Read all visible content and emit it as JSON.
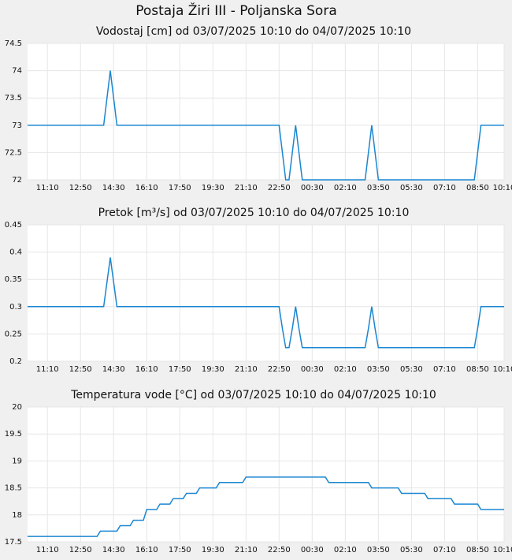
{
  "title": "Postaja Žiri III - Poljanska Sora",
  "chart_data": [
    {
      "type": "line",
      "title": "Vodostaj [cm] od 03/07/2025 10:10 do 04/07/2025 10:10",
      "color": "#1a86d0",
      "grid": true,
      "categories": [
        null,
        null,
        null,
        null,
        null,
        null,
        "11:10",
        null,
        null,
        null,
        null,
        null,
        null,
        null,
        null,
        null,
        "12:50",
        null,
        null,
        null,
        null,
        null,
        null,
        null,
        null,
        null,
        "14:30",
        null,
        null,
        null,
        null,
        null,
        null,
        null,
        null,
        null,
        "16:10",
        null,
        null,
        null,
        null,
        null,
        null,
        null,
        null,
        null,
        "17:50",
        null,
        null,
        null,
        null,
        null,
        null,
        null,
        null,
        null,
        "19:30",
        null,
        null,
        null,
        null,
        null,
        null,
        null,
        null,
        null,
        "21:10",
        null,
        null,
        null,
        null,
        null,
        null,
        null,
        null,
        null,
        "22:50",
        null,
        null,
        null,
        null,
        null,
        null,
        null,
        null,
        null,
        "00:30",
        null,
        null,
        null,
        null,
        null,
        null,
        null,
        null,
        null,
        "02:10",
        null,
        null,
        null,
        null,
        null,
        null,
        null,
        null,
        null,
        "03:50",
        null,
        null,
        null,
        null,
        null,
        null,
        null,
        null,
        null,
        "05:30",
        null,
        null,
        null,
        null,
        null,
        null,
        null,
        null,
        null,
        "07:10",
        null,
        null,
        null,
        null,
        null,
        null,
        null,
        null,
        null,
        "08:50",
        null,
        null,
        null,
        null,
        null,
        null,
        null,
        "10:10"
      ],
      "values": [
        73,
        73,
        73,
        73,
        73,
        73,
        73,
        73,
        73,
        73,
        73,
        73,
        73,
        73,
        73,
        73,
        73,
        73,
        73,
        73,
        73,
        73,
        73,
        73,
        73.5,
        74,
        73.5,
        73,
        73,
        73,
        73,
        73,
        73,
        73,
        73,
        73,
        73,
        73,
        73,
        73,
        73,
        73,
        73,
        73,
        73,
        73,
        73,
        73,
        73,
        73,
        73,
        73,
        73,
        73,
        73,
        73,
        73,
        73,
        73,
        73,
        73,
        73,
        73,
        73,
        73,
        73,
        73,
        73,
        73,
        73,
        73,
        73,
        73,
        73,
        73,
        73,
        73,
        72.5,
        72,
        72,
        72.5,
        73,
        72.5,
        72,
        72,
        72,
        72,
        72,
        72,
        72,
        72,
        72,
        72,
        72,
        72,
        72,
        72,
        72,
        72,
        72,
        72,
        72,
        72,
        72.5,
        73,
        72.5,
        72,
        72,
        72,
        72,
        72,
        72,
        72,
        72,
        72,
        72,
        72,
        72,
        72,
        72,
        72,
        72,
        72,
        72,
        72,
        72,
        72,
        72,
        72,
        72,
        72,
        72,
        72,
        72,
        72,
        72,
        72.5,
        73,
        73,
        73,
        73,
        73,
        73,
        73,
        73
      ],
      "ylim": [
        72,
        74.5
      ],
      "yticks": [
        72,
        72.5,
        73,
        73.5,
        74,
        74.5
      ]
    },
    {
      "type": "line",
      "title": "Pretok [m³/s] od 03/07/2025 10:10 do 04/07/2025 10:10",
      "color": "#1a86d0",
      "grid": true,
      "categories": [
        null,
        null,
        null,
        null,
        null,
        null,
        "11:10",
        null,
        null,
        null,
        null,
        null,
        null,
        null,
        null,
        null,
        "12:50",
        null,
        null,
        null,
        null,
        null,
        null,
        null,
        null,
        null,
        "14:30",
        null,
        null,
        null,
        null,
        null,
        null,
        null,
        null,
        null,
        "16:10",
        null,
        null,
        null,
        null,
        null,
        null,
        null,
        null,
        null,
        "17:50",
        null,
        null,
        null,
        null,
        null,
        null,
        null,
        null,
        null,
        "19:30",
        null,
        null,
        null,
        null,
        null,
        null,
        null,
        null,
        null,
        "21:10",
        null,
        null,
        null,
        null,
        null,
        null,
        null,
        null,
        null,
        "22:50",
        null,
        null,
        null,
        null,
        null,
        null,
        null,
        null,
        null,
        "00:30",
        null,
        null,
        null,
        null,
        null,
        null,
        null,
        null,
        null,
        "02:10",
        null,
        null,
        null,
        null,
        null,
        null,
        null,
        null,
        null,
        "03:50",
        null,
        null,
        null,
        null,
        null,
        null,
        null,
        null,
        null,
        "05:30",
        null,
        null,
        null,
        null,
        null,
        null,
        null,
        null,
        null,
        "07:10",
        null,
        null,
        null,
        null,
        null,
        null,
        null,
        null,
        null,
        "08:50",
        null,
        null,
        null,
        null,
        null,
        null,
        null,
        "10:10"
      ],
      "values": [
        0.3,
        0.3,
        0.3,
        0.3,
        0.3,
        0.3,
        0.3,
        0.3,
        0.3,
        0.3,
        0.3,
        0.3,
        0.3,
        0.3,
        0.3,
        0.3,
        0.3,
        0.3,
        0.3,
        0.3,
        0.3,
        0.3,
        0.3,
        0.3,
        0.345,
        0.39,
        0.345,
        0.3,
        0.3,
        0.3,
        0.3,
        0.3,
        0.3,
        0.3,
        0.3,
        0.3,
        0.3,
        0.3,
        0.3,
        0.3,
        0.3,
        0.3,
        0.3,
        0.3,
        0.3,
        0.3,
        0.3,
        0.3,
        0.3,
        0.3,
        0.3,
        0.3,
        0.3,
        0.3,
        0.3,
        0.3,
        0.3,
        0.3,
        0.3,
        0.3,
        0.3,
        0.3,
        0.3,
        0.3,
        0.3,
        0.3,
        0.3,
        0.3,
        0.3,
        0.3,
        0.3,
        0.3,
        0.3,
        0.3,
        0.3,
        0.3,
        0.3,
        0.26,
        0.225,
        0.225,
        0.26,
        0.3,
        0.26,
        0.225,
        0.225,
        0.225,
        0.225,
        0.225,
        0.225,
        0.225,
        0.225,
        0.225,
        0.225,
        0.225,
        0.225,
        0.225,
        0.225,
        0.225,
        0.225,
        0.225,
        0.225,
        0.225,
        0.225,
        0.26,
        0.3,
        0.26,
        0.225,
        0.225,
        0.225,
        0.225,
        0.225,
        0.225,
        0.225,
        0.225,
        0.225,
        0.225,
        0.225,
        0.225,
        0.225,
        0.225,
        0.225,
        0.225,
        0.225,
        0.225,
        0.225,
        0.225,
        0.225,
        0.225,
        0.225,
        0.225,
        0.225,
        0.225,
        0.225,
        0.225,
        0.225,
        0.225,
        0.26,
        0.3,
        0.3,
        0.3,
        0.3,
        0.3,
        0.3,
        0.3,
        0.3
      ],
      "ylim": [
        0.2,
        0.45
      ],
      "yticks": [
        0.2,
        0.25,
        0.3,
        0.35,
        0.4,
        0.45
      ]
    },
    {
      "type": "line",
      "title": "Temperatura vode [°C] od 03/07/2025 10:10 do 04/07/2025 10:10",
      "color": "#1a86d0",
      "grid": true,
      "categories": [
        null,
        null,
        null,
        null,
        null,
        null,
        "11:10",
        null,
        null,
        null,
        null,
        null,
        null,
        null,
        null,
        null,
        "12:50",
        null,
        null,
        null,
        null,
        null,
        null,
        null,
        null,
        null,
        "14:30",
        null,
        null,
        null,
        null,
        null,
        null,
        null,
        null,
        null,
        "16:10",
        null,
        null,
        null,
        null,
        null,
        null,
        null,
        null,
        null,
        "17:50",
        null,
        null,
        null,
        null,
        null,
        null,
        null,
        null,
        null,
        "19:30",
        null,
        null,
        null,
        null,
        null,
        null,
        null,
        null,
        null,
        "21:10",
        null,
        null,
        null,
        null,
        null,
        null,
        null,
        null,
        null,
        "22:50",
        null,
        null,
        null,
        null,
        null,
        null,
        null,
        null,
        null,
        "00:30",
        null,
        null,
        null,
        null,
        null,
        null,
        null,
        null,
        null,
        "02:10",
        null,
        null,
        null,
        null,
        null,
        null,
        null,
        null,
        null,
        "03:50",
        null,
        null,
        null,
        null,
        null,
        null,
        null,
        null,
        null,
        "05:30",
        null,
        null,
        null,
        null,
        null,
        null,
        null,
        null,
        null,
        "07:10",
        null,
        null,
        null,
        null,
        null,
        null,
        null,
        null,
        null,
        "08:50",
        null,
        null,
        null,
        null,
        null,
        null,
        null,
        "10:10"
      ],
      "values": [
        17.6,
        17.6,
        17.6,
        17.6,
        17.6,
        17.6,
        17.6,
        17.6,
        17.6,
        17.6,
        17.6,
        17.6,
        17.6,
        17.6,
        17.6,
        17.6,
        17.6,
        17.6,
        17.6,
        17.6,
        17.6,
        17.6,
        17.7,
        17.7,
        17.7,
        17.7,
        17.7,
        17.7,
        17.8,
        17.8,
        17.8,
        17.8,
        17.9,
        17.9,
        17.9,
        17.9,
        18.1,
        18.1,
        18.1,
        18.1,
        18.2,
        18.2,
        18.2,
        18.2,
        18.3,
        18.3,
        18.3,
        18.3,
        18.4,
        18.4,
        18.4,
        18.4,
        18.5,
        18.5,
        18.5,
        18.5,
        18.5,
        18.5,
        18.6,
        18.6,
        18.6,
        18.6,
        18.6,
        18.6,
        18.6,
        18.6,
        18.7,
        18.7,
        18.7,
        18.7,
        18.7,
        18.7,
        18.7,
        18.7,
        18.7,
        18.7,
        18.7,
        18.7,
        18.7,
        18.7,
        18.7,
        18.7,
        18.7,
        18.7,
        18.7,
        18.7,
        18.7,
        18.7,
        18.7,
        18.7,
        18.7,
        18.6,
        18.6,
        18.6,
        18.6,
        18.6,
        18.6,
        18.6,
        18.6,
        18.6,
        18.6,
        18.6,
        18.6,
        18.6,
        18.5,
        18.5,
        18.5,
        18.5,
        18.5,
        18.5,
        18.5,
        18.5,
        18.5,
        18.4,
        18.4,
        18.4,
        18.4,
        18.4,
        18.4,
        18.4,
        18.4,
        18.3,
        18.3,
        18.3,
        18.3,
        18.3,
        18.3,
        18.3,
        18.3,
        18.2,
        18.2,
        18.2,
        18.2,
        18.2,
        18.2,
        18.2,
        18.2,
        18.1,
        18.1,
        18.1,
        18.1,
        18.1,
        18.1,
        18.1,
        18.1
      ],
      "ylim": [
        17.5,
        20
      ],
      "yticks": [
        17.5,
        18,
        18.5,
        19,
        19.5,
        20
      ]
    }
  ]
}
